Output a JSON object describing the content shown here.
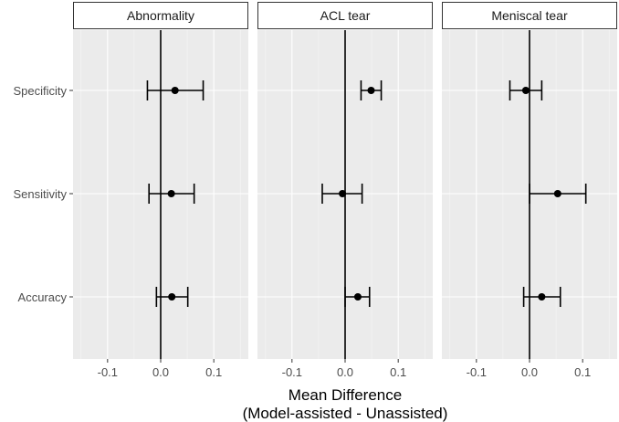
{
  "chart_data": {
    "type": "scatter",
    "xlabel_line1": "Mean Difference",
    "xlabel_line2": "(Model-assisted - Unassisted)",
    "ylabel": "",
    "xlim": [
      -0.165,
      0.165
    ],
    "xticks": [
      -0.1,
      0.0,
      0.1
    ],
    "xtick_labels": [
      "-0.1",
      "0.0",
      "0.1"
    ],
    "categories": [
      "Specificity",
      "Sensitivity",
      "Accuracy"
    ],
    "grid": true,
    "panels": [
      {
        "title": "Abnormality",
        "points": [
          {
            "metric": "Specificity",
            "value": 0.027,
            "lower": -0.025,
            "upper": 0.08
          },
          {
            "metric": "Sensitivity",
            "value": 0.02,
            "lower": -0.022,
            "upper": 0.063
          },
          {
            "metric": "Accuracy",
            "value": 0.021,
            "lower": -0.008,
            "upper": 0.051
          }
        ]
      },
      {
        "title": "ACL tear",
        "points": [
          {
            "metric": "Specificity",
            "value": 0.049,
            "lower": 0.03,
            "upper": 0.068
          },
          {
            "metric": "Sensitivity",
            "value": -0.005,
            "lower": -0.043,
            "upper": 0.032
          },
          {
            "metric": "Accuracy",
            "value": 0.024,
            "lower": 0.0,
            "upper": 0.046
          }
        ]
      },
      {
        "title": "Meniscal tear",
        "points": [
          {
            "metric": "Specificity",
            "value": -0.007,
            "lower": -0.037,
            "upper": 0.023
          },
          {
            "metric": "Sensitivity",
            "value": 0.053,
            "lower": 0.0,
            "upper": 0.106
          },
          {
            "metric": "Accuracy",
            "value": 0.023,
            "lower": -0.011,
            "upper": 0.058
          }
        ]
      }
    ],
    "colors": {
      "panel_bg": "#ebebeb",
      "grid_major": "#ffffff",
      "strip_bg": "#ffffff",
      "strip_border": "#333333",
      "zero_line": "#000000",
      "point": "#000000",
      "errorbar": "#000000",
      "tick_text": "#4d4d4d"
    }
  }
}
